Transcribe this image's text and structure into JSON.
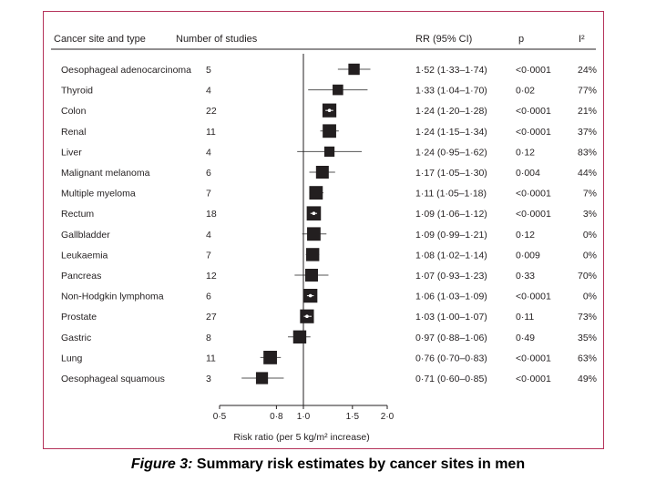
{
  "headers": {
    "site": "Cancer site and type",
    "studies": "Number of studies",
    "rr": "RR (95% CI)",
    "p": "p",
    "i2": "I²"
  },
  "axis": {
    "label": "Risk ratio (per 5 kg/m² increase)",
    "ticks": [
      "0·5",
      "0·8",
      "1·0",
      "1·5",
      "2·0"
    ]
  },
  "caption": {
    "label": "Figure 3:",
    "text": " Summary risk estimates by cancer sites in men"
  },
  "colors": {
    "border": "#b5335a",
    "marker": "#231f20",
    "line": "#555555"
  },
  "chart_data": {
    "type": "forest",
    "xscale": "log",
    "xlim": [
      0.5,
      2.0
    ],
    "reference": 1.0,
    "xlabel": "Risk ratio (per 5 kg/m² increase)",
    "xticks": [
      0.5,
      0.8,
      1.0,
      1.5,
      2.0
    ],
    "rows": [
      {
        "site": "Oesophageal adenocarcinoma",
        "studies": "5",
        "rr": 1.52,
        "lo": 1.33,
        "hi": 1.74,
        "rr_text": "1·52 (1·33–1·74)",
        "p": "<0·0001",
        "i2": "24%",
        "weight": 0.55
      },
      {
        "site": "Thyroid",
        "studies": "4",
        "rr": 1.33,
        "lo": 1.04,
        "hi": 1.7,
        "rr_text": "1·33 (1·04–1·70)",
        "p": "0·02",
        "i2": "77%",
        "weight": 0.45
      },
      {
        "site": "Colon",
        "studies": "22",
        "rr": 1.24,
        "lo": 1.2,
        "hi": 1.28,
        "rr_text": "1·24 (1·20–1·28)",
        "p": "<0·0001",
        "i2": "21%",
        "weight": 0.9
      },
      {
        "site": "Renal",
        "studies": "11",
        "rr": 1.24,
        "lo": 1.15,
        "hi": 1.34,
        "rr_text": "1·24 (1·15–1·34)",
        "p": "<0·0001",
        "i2": "37%",
        "weight": 0.85
      },
      {
        "site": "Liver",
        "studies": "4",
        "rr": 1.24,
        "lo": 0.95,
        "hi": 1.62,
        "rr_text": "1·24 (0·95–1·62)",
        "p": "0·12",
        "i2": "83%",
        "weight": 0.4
      },
      {
        "site": "Malignant melanoma",
        "studies": "6",
        "rr": 1.17,
        "lo": 1.05,
        "hi": 1.3,
        "rr_text": "1·17 (1·05–1·30)",
        "p": "0·004",
        "i2": "44%",
        "weight": 0.75
      },
      {
        "site": "Multiple myeloma",
        "studies": "7",
        "rr": 1.11,
        "lo": 1.05,
        "hi": 1.18,
        "rr_text": "1·11 (1·05–1·18)",
        "p": "<0·0001",
        "i2": "7%",
        "weight": 0.85
      },
      {
        "site": "Rectum",
        "studies": "18",
        "rr": 1.09,
        "lo": 1.06,
        "hi": 1.12,
        "rr_text": "1·09 (1·06–1·12)",
        "p": "<0·0001",
        "i2": "3%",
        "weight": 0.95
      },
      {
        "site": "Gallbladder",
        "studies": "4",
        "rr": 1.09,
        "lo": 0.99,
        "hi": 1.21,
        "rr_text": "1·09 (0·99–1·21)",
        "p": "0·12",
        "i2": "0%",
        "weight": 0.85
      },
      {
        "site": "Leukaemia",
        "studies": "7",
        "rr": 1.08,
        "lo": 1.02,
        "hi": 1.14,
        "rr_text": "1·08 (1·02–1·14)",
        "p": "0·009",
        "i2": "0%",
        "weight": 0.8
      },
      {
        "site": "Pancreas",
        "studies": "12",
        "rr": 1.07,
        "lo": 0.93,
        "hi": 1.23,
        "rr_text": "1·07 (0·93–1·23)",
        "p": "0·33",
        "i2": "70%",
        "weight": 0.75
      },
      {
        "site": "Non-Hodgkin lymphoma",
        "studies": "6",
        "rr": 1.06,
        "lo": 1.03,
        "hi": 1.09,
        "rr_text": "1·06 (1·03–1·09)",
        "p": "<0·0001",
        "i2": "0%",
        "weight": 0.9
      },
      {
        "site": "Prostate",
        "studies": "27",
        "rr": 1.03,
        "lo": 1.0,
        "hi": 1.07,
        "rr_text": "1·03 (1·00–1·07)",
        "p": "0·11",
        "i2": "73%",
        "weight": 0.9
      },
      {
        "site": "Gastric",
        "studies": "8",
        "rr": 0.97,
        "lo": 0.88,
        "hi": 1.06,
        "rr_text": "0·97 (0·88–1·06)",
        "p": "0·49",
        "i2": "35%",
        "weight": 0.8
      },
      {
        "site": "Lung",
        "studies": "11",
        "rr": 0.76,
        "lo": 0.7,
        "hi": 0.83,
        "rr_text": "0·76 (0·70–0·83)",
        "p": "<0·0001",
        "i2": "63%",
        "weight": 0.85
      },
      {
        "site": "Oesophageal squamous",
        "studies": "3",
        "rr": 0.71,
        "lo": 0.6,
        "hi": 0.85,
        "rr_text": "0·71 (0·60–0·85)",
        "p": "<0·0001",
        "i2": "49%",
        "weight": 0.65
      }
    ]
  }
}
